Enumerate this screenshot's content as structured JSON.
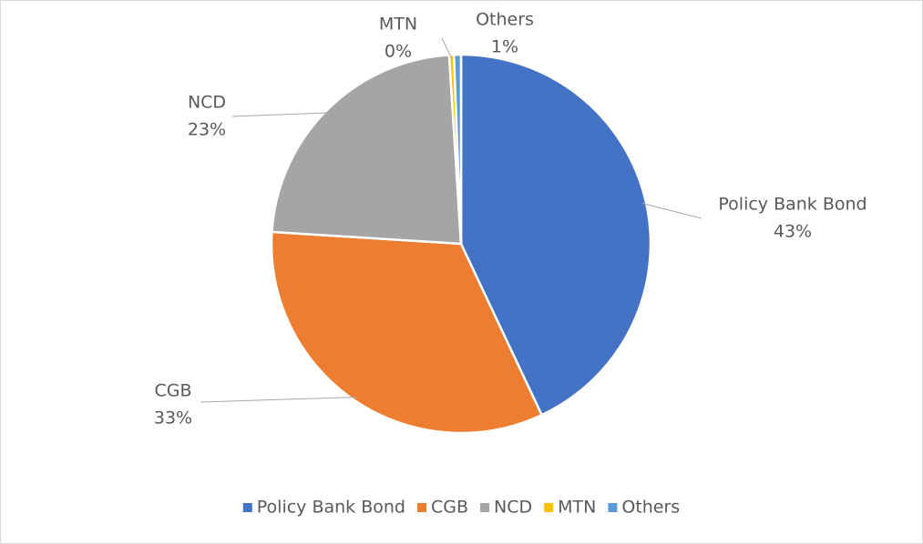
{
  "chart_data": {
    "type": "pie",
    "categories": [
      "Policy Bank Bond",
      "CGB",
      "NCD",
      "MTN",
      "Others"
    ],
    "values": [
      43,
      33,
      23,
      0.4,
      0.6
    ],
    "value_labels": [
      "43%",
      "33%",
      "23%",
      "0%",
      "1%"
    ],
    "colors": [
      "#4472c4",
      "#ed7d31",
      "#a5a5a5",
      "#ffc000",
      "#5b9bd5"
    ],
    "legend": "bottom"
  }
}
